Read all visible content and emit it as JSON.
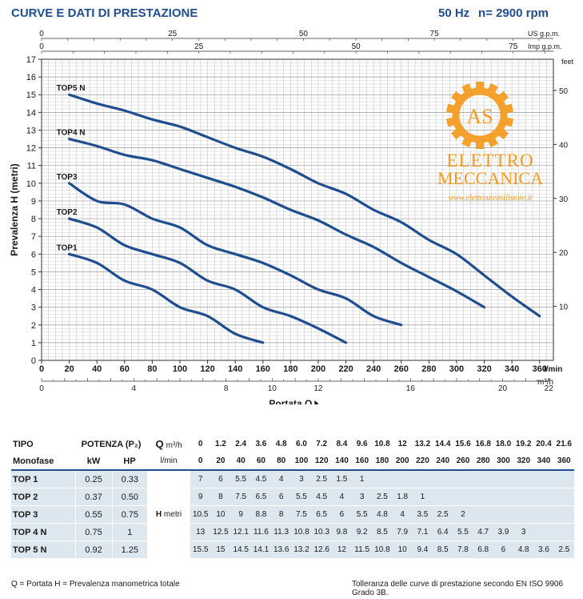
{
  "header": {
    "title": "CURVE E DATI DI PRESTAZIONE",
    "freq": "50 Hz",
    "rpm": "n= 2900 rpm"
  },
  "colors": {
    "curve": "#1f4e8f",
    "grid": "#bfbfbf",
    "header_text": "#1f4e8f",
    "table_row": "#dde7ef",
    "logo": "#f59a1c"
  },
  "logo": {
    "initials": "AS",
    "line1": "ELETTRO",
    "line2": "MECCANICA",
    "url": "www.elettroutensilistore.it"
  },
  "chart_data": {
    "type": "line",
    "xlabel": "Portata Q",
    "ylabel": "Prevalenza H (metri)",
    "x_unit": "l/min",
    "x_unit_m3h": "m³/h",
    "secondary_y_unit": "feet",
    "top_axis_us_label": "US g.p.m.",
    "top_axis_imp_label": "Imp g.p.m.",
    "xlim": [
      0,
      370
    ],
    "ylim": [
      0,
      17
    ],
    "x_ticks": [
      0,
      20,
      40,
      60,
      80,
      100,
      120,
      140,
      160,
      180,
      200,
      220,
      240,
      260,
      280,
      300,
      320,
      340,
      360
    ],
    "y_ticks": [
      0,
      1,
      2,
      3,
      4,
      5,
      6,
      7,
      8,
      9,
      10,
      11,
      12,
      13,
      14,
      15,
      16,
      17
    ],
    "feet_ticks": [
      10,
      20,
      30,
      40,
      50
    ],
    "us_gpm_ticks": [
      0,
      25,
      50,
      75
    ],
    "imp_gpm_ticks": [
      0,
      25,
      50,
      75
    ],
    "m3h_ticks": [
      0,
      4,
      8,
      10,
      12,
      16,
      20,
      22
    ],
    "m3h_tick_labels": [
      "0",
      "4",
      "8",
      "10",
      "12",
      "16",
      "20",
      "22"
    ],
    "grid": true,
    "series": [
      {
        "name": "TOP1",
        "x": [
          20,
          40,
          60,
          80,
          100,
          120,
          140,
          160
        ],
        "y": [
          6,
          5.5,
          4.5,
          4,
          3,
          2.5,
          1.5,
          1
        ]
      },
      {
        "name": "TOP2",
        "x": [
          20,
          40,
          60,
          80,
          100,
          120,
          140,
          160,
          180,
          200,
          220
        ],
        "y": [
          8,
          7.5,
          6.5,
          6,
          5.5,
          4.5,
          4,
          3,
          2.5,
          1.8,
          1
        ]
      },
      {
        "name": "TOP3",
        "x": [
          20,
          40,
          60,
          80,
          100,
          120,
          140,
          160,
          180,
          200,
          220,
          240,
          260
        ],
        "y": [
          10,
          9,
          8.8,
          8,
          7.5,
          6.5,
          6,
          5.5,
          4.8,
          4,
          3.5,
          2.5,
          2
        ]
      },
      {
        "name": "TOP4 N",
        "x": [
          20,
          40,
          60,
          80,
          100,
          120,
          140,
          160,
          180,
          200,
          220,
          240,
          260,
          280,
          300,
          320
        ],
        "y": [
          12.5,
          12.1,
          11.6,
          11.3,
          10.8,
          10.3,
          9.8,
          9.2,
          8.5,
          7.9,
          7.1,
          6.4,
          5.5,
          4.7,
          3.9,
          3
        ]
      },
      {
        "name": "TOP5 N",
        "x": [
          20,
          40,
          60,
          80,
          100,
          120,
          140,
          160,
          180,
          200,
          220,
          240,
          260,
          280,
          300,
          320,
          340,
          360
        ],
        "y": [
          15,
          14.5,
          14.1,
          13.6,
          13.2,
          12.6,
          12,
          11.5,
          10.8,
          10,
          9.4,
          8.5,
          7.8,
          6.8,
          6,
          4.8,
          3.6,
          2.5
        ]
      }
    ]
  },
  "table": {
    "col_tipo": "TIPO",
    "col_monofase": "Monofase",
    "col_potenza": "POTENZA (P₂)",
    "col_kw": "kW",
    "col_hp": "HP",
    "q_label": "Q",
    "q_m3h": "m³/h",
    "q_lmin": "l/min",
    "h_label": "H",
    "h_unit": "metri",
    "m3h": [
      "0",
      "1.2",
      "2.4",
      "3.6",
      "4.8",
      "6.0",
      "7.2",
      "8.4",
      "9.6",
      "10.8",
      "12",
      "13.2",
      "14.4",
      "15.6",
      "16.8",
      "18.0",
      "19.2",
      "20.4",
      "21.6"
    ],
    "lmin": [
      "0",
      "20",
      "40",
      "60",
      "80",
      "100",
      "120",
      "140",
      "160",
      "180",
      "200",
      "220",
      "240",
      "260",
      "280",
      "300",
      "320",
      "340",
      "360"
    ],
    "rows": [
      {
        "name": "TOP 1",
        "kw": "0.25",
        "hp": "0.33",
        "h": [
          "7",
          "6",
          "5.5",
          "4.5",
          "4",
          "3",
          "2.5",
          "1.5",
          "1"
        ]
      },
      {
        "name": "TOP 2",
        "kw": "0.37",
        "hp": "0.50",
        "h": [
          "9",
          "8",
          "7.5",
          "6.5",
          "6",
          "5.5",
          "4.5",
          "4",
          "3",
          "2.5",
          "1.8",
          "1"
        ]
      },
      {
        "name": "TOP 3",
        "kw": "0.55",
        "hp": "0.75",
        "h": [
          "10.5",
          "10",
          "9",
          "8.8",
          "8",
          "7.5",
          "6.5",
          "6",
          "5.5",
          "4.8",
          "4",
          "3.5",
          "2.5",
          "2"
        ]
      },
      {
        "name": "TOP 4 N",
        "kw": "0.75",
        "hp": "1",
        "h": [
          "13",
          "12.5",
          "12.1",
          "11.6",
          "11.3",
          "10.8",
          "10.3",
          "9.8",
          "9.2",
          "8.5",
          "7.9",
          "7.1",
          "6.4",
          "5.5",
          "4.7",
          "3.9",
          "3"
        ]
      },
      {
        "name": "TOP 5 N",
        "kw": "0.92",
        "hp": "1.25",
        "h": [
          "15.5",
          "15",
          "14.5",
          "14.1",
          "13.6",
          "13.2",
          "12.6",
          "12",
          "11.5",
          "10.8",
          "10",
          "9.4",
          "8.5",
          "7.8",
          "6.8",
          "6",
          "4.8",
          "3.6",
          "2.5"
        ]
      }
    ]
  },
  "footer": {
    "left": "Q = Portata   H = Prevalenza manometrica totale",
    "right": "Tolleranza delle curve di prestazione secondo EN ISO 9906 Grado 3B."
  }
}
